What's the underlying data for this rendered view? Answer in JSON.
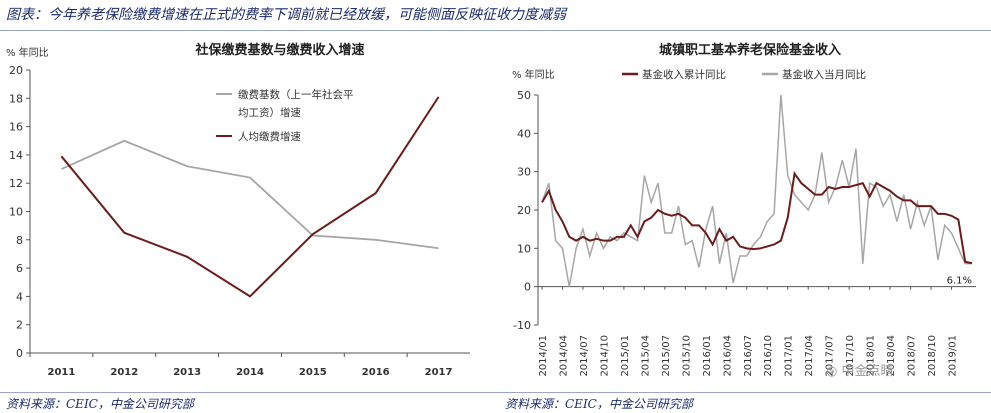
{
  "page": {
    "title": "图表：今年养老保险缴费增速在正式的费率下调前就已经放缓，可能侧面反映征收力度减弱",
    "source_left": "资料来源：CEIC，中金公司研究部",
    "source_right": "资料来源：CEIC，中金公司研究部",
    "watermark": "中金点睛"
  },
  "chart_data": [
    {
      "type": "line",
      "title": "社保缴费基数与缴费收入增速",
      "ylabel": "% 年同比",
      "categories": [
        "2011",
        "2012",
        "2013",
        "2014",
        "2015",
        "2016",
        "2017"
      ],
      "ylim": [
        0,
        20
      ],
      "yticks": [
        0,
        2,
        4,
        6,
        8,
        10,
        12,
        14,
        16,
        18,
        20
      ],
      "grid": false,
      "legend_position": "top-center",
      "series": [
        {
          "name": "缴费基数（上一年社会平均工资）增速",
          "legend_lines": [
            "缴费基数（上一年社会平",
            "均工资）增速"
          ],
          "color": "#a6a6a6",
          "values": [
            13.0,
            15.0,
            13.2,
            12.4,
            8.3,
            8.0,
            7.4
          ]
        },
        {
          "name": "人均缴费增速",
          "legend_lines": [
            "人均缴费增速"
          ],
          "color": "#6b1c1c",
          "values": [
            13.9,
            8.5,
            6.8,
            4.0,
            8.4,
            11.3,
            18.1
          ]
        }
      ]
    },
    {
      "type": "line",
      "title": "城镇职工基本养老保险基金收入",
      "ylabel": "% 年同比",
      "ylim": [
        -10,
        50
      ],
      "yticks": [
        -10,
        0,
        10,
        20,
        30,
        40,
        50
      ],
      "grid": false,
      "legend_position": "top",
      "xtick_labels": [
        "2014/01",
        "2014/04",
        "2014/07",
        "2014/10",
        "2015/01",
        "2015/04",
        "2015/07",
        "2015/10",
        "2016/01",
        "2016/04",
        "2016/07",
        "2016/10",
        "2017/01",
        "2017/04",
        "2017/07",
        "2017/10",
        "2018/01",
        "2018/04",
        "2018/07",
        "2018/10",
        "2019/01"
      ],
      "annotation": "6.1%",
      "series": [
        {
          "name": "基金收入累计同比",
          "color": "#6b1c1c",
          "x": [
            "2014/01",
            "2014/02",
            "2014/03",
            "2014/04",
            "2014/05",
            "2014/06",
            "2014/07",
            "2014/08",
            "2014/09",
            "2014/10",
            "2014/11",
            "2014/12",
            "2015/01",
            "2015/02",
            "2015/03",
            "2015/04",
            "2015/05",
            "2015/06",
            "2015/07",
            "2015/08",
            "2015/09",
            "2015/10",
            "2015/11",
            "2015/12",
            "2016/01",
            "2016/02",
            "2016/03",
            "2016/04",
            "2016/05",
            "2016/06",
            "2016/07",
            "2016/08",
            "2016/09",
            "2016/10",
            "2016/11",
            "2016/12",
            "2017/01",
            "2017/02",
            "2017/03",
            "2017/04",
            "2017/05",
            "2017/06",
            "2017/07",
            "2017/08",
            "2017/09",
            "2017/10",
            "2017/11",
            "2017/12",
            "2018/01",
            "2018/02",
            "2018/03",
            "2018/04",
            "2018/05",
            "2018/06",
            "2018/07",
            "2018/08",
            "2018/09",
            "2018/10",
            "2018/11",
            "2018/12",
            "2019/01",
            "2019/02",
            "2019/03",
            "2019/04"
          ],
          "values": [
            22,
            25,
            20,
            17,
            13,
            12,
            13,
            12,
            12.5,
            12,
            12,
            13,
            13,
            16,
            13,
            17,
            18,
            20,
            19,
            18.5,
            19,
            18,
            16,
            16,
            14,
            11,
            15,
            12,
            13,
            10.5,
            10,
            9.8,
            10,
            10.5,
            11,
            12,
            18,
            29.5,
            27,
            25.5,
            24,
            24,
            26,
            25.5,
            26,
            26,
            26.5,
            27,
            23.5,
            27,
            26,
            25,
            23.5,
            22.5,
            22.5,
            21,
            21,
            21,
            19,
            19,
            18.5,
            17.5,
            6.5,
            6.1
          ]
        },
        {
          "name": "基金收入当月同比",
          "color": "#a6a6a6",
          "x": [
            "2014/01",
            "2014/02",
            "2014/03",
            "2014/04",
            "2014/05",
            "2014/06",
            "2014/07",
            "2014/08",
            "2014/09",
            "2014/10",
            "2014/11",
            "2014/12",
            "2015/01",
            "2015/02",
            "2015/03",
            "2015/04",
            "2015/05",
            "2015/06",
            "2015/07",
            "2015/08",
            "2015/09",
            "2015/10",
            "2015/11",
            "2015/12",
            "2016/01",
            "2016/02",
            "2016/03",
            "2016/04",
            "2016/05",
            "2016/06",
            "2016/07",
            "2016/08",
            "2016/09",
            "2016/10",
            "2016/11",
            "2016/12",
            "2017/01",
            "2017/02",
            "2017/03",
            "2017/04",
            "2017/05",
            "2017/06",
            "2017/07",
            "2017/08",
            "2017/09",
            "2017/10",
            "2017/11",
            "2017/12",
            "2018/01",
            "2018/02",
            "2018/03",
            "2018/04",
            "2018/05",
            "2018/06",
            "2018/07",
            "2018/08",
            "2018/09",
            "2018/10",
            "2018/11",
            "2018/12",
            "2019/01",
            "2019/02",
            "2019/03",
            "2019/04"
          ],
          "values": [
            22,
            27,
            12,
            10,
            0,
            10,
            15,
            8,
            14,
            10,
            13,
            12,
            14,
            13,
            12,
            29,
            22,
            27,
            14,
            14,
            21,
            11,
            12,
            5,
            15,
            21,
            6,
            14,
            1,
            8,
            8,
            11,
            13,
            17,
            19,
            50,
            29,
            24,
            22,
            20,
            24,
            35,
            22,
            26,
            33,
            26,
            36,
            6,
            27,
            26,
            21,
            24,
            17,
            24,
            15,
            22,
            16,
            21,
            7,
            16,
            14,
            10,
            6,
            6
          ]
        }
      ]
    }
  ]
}
